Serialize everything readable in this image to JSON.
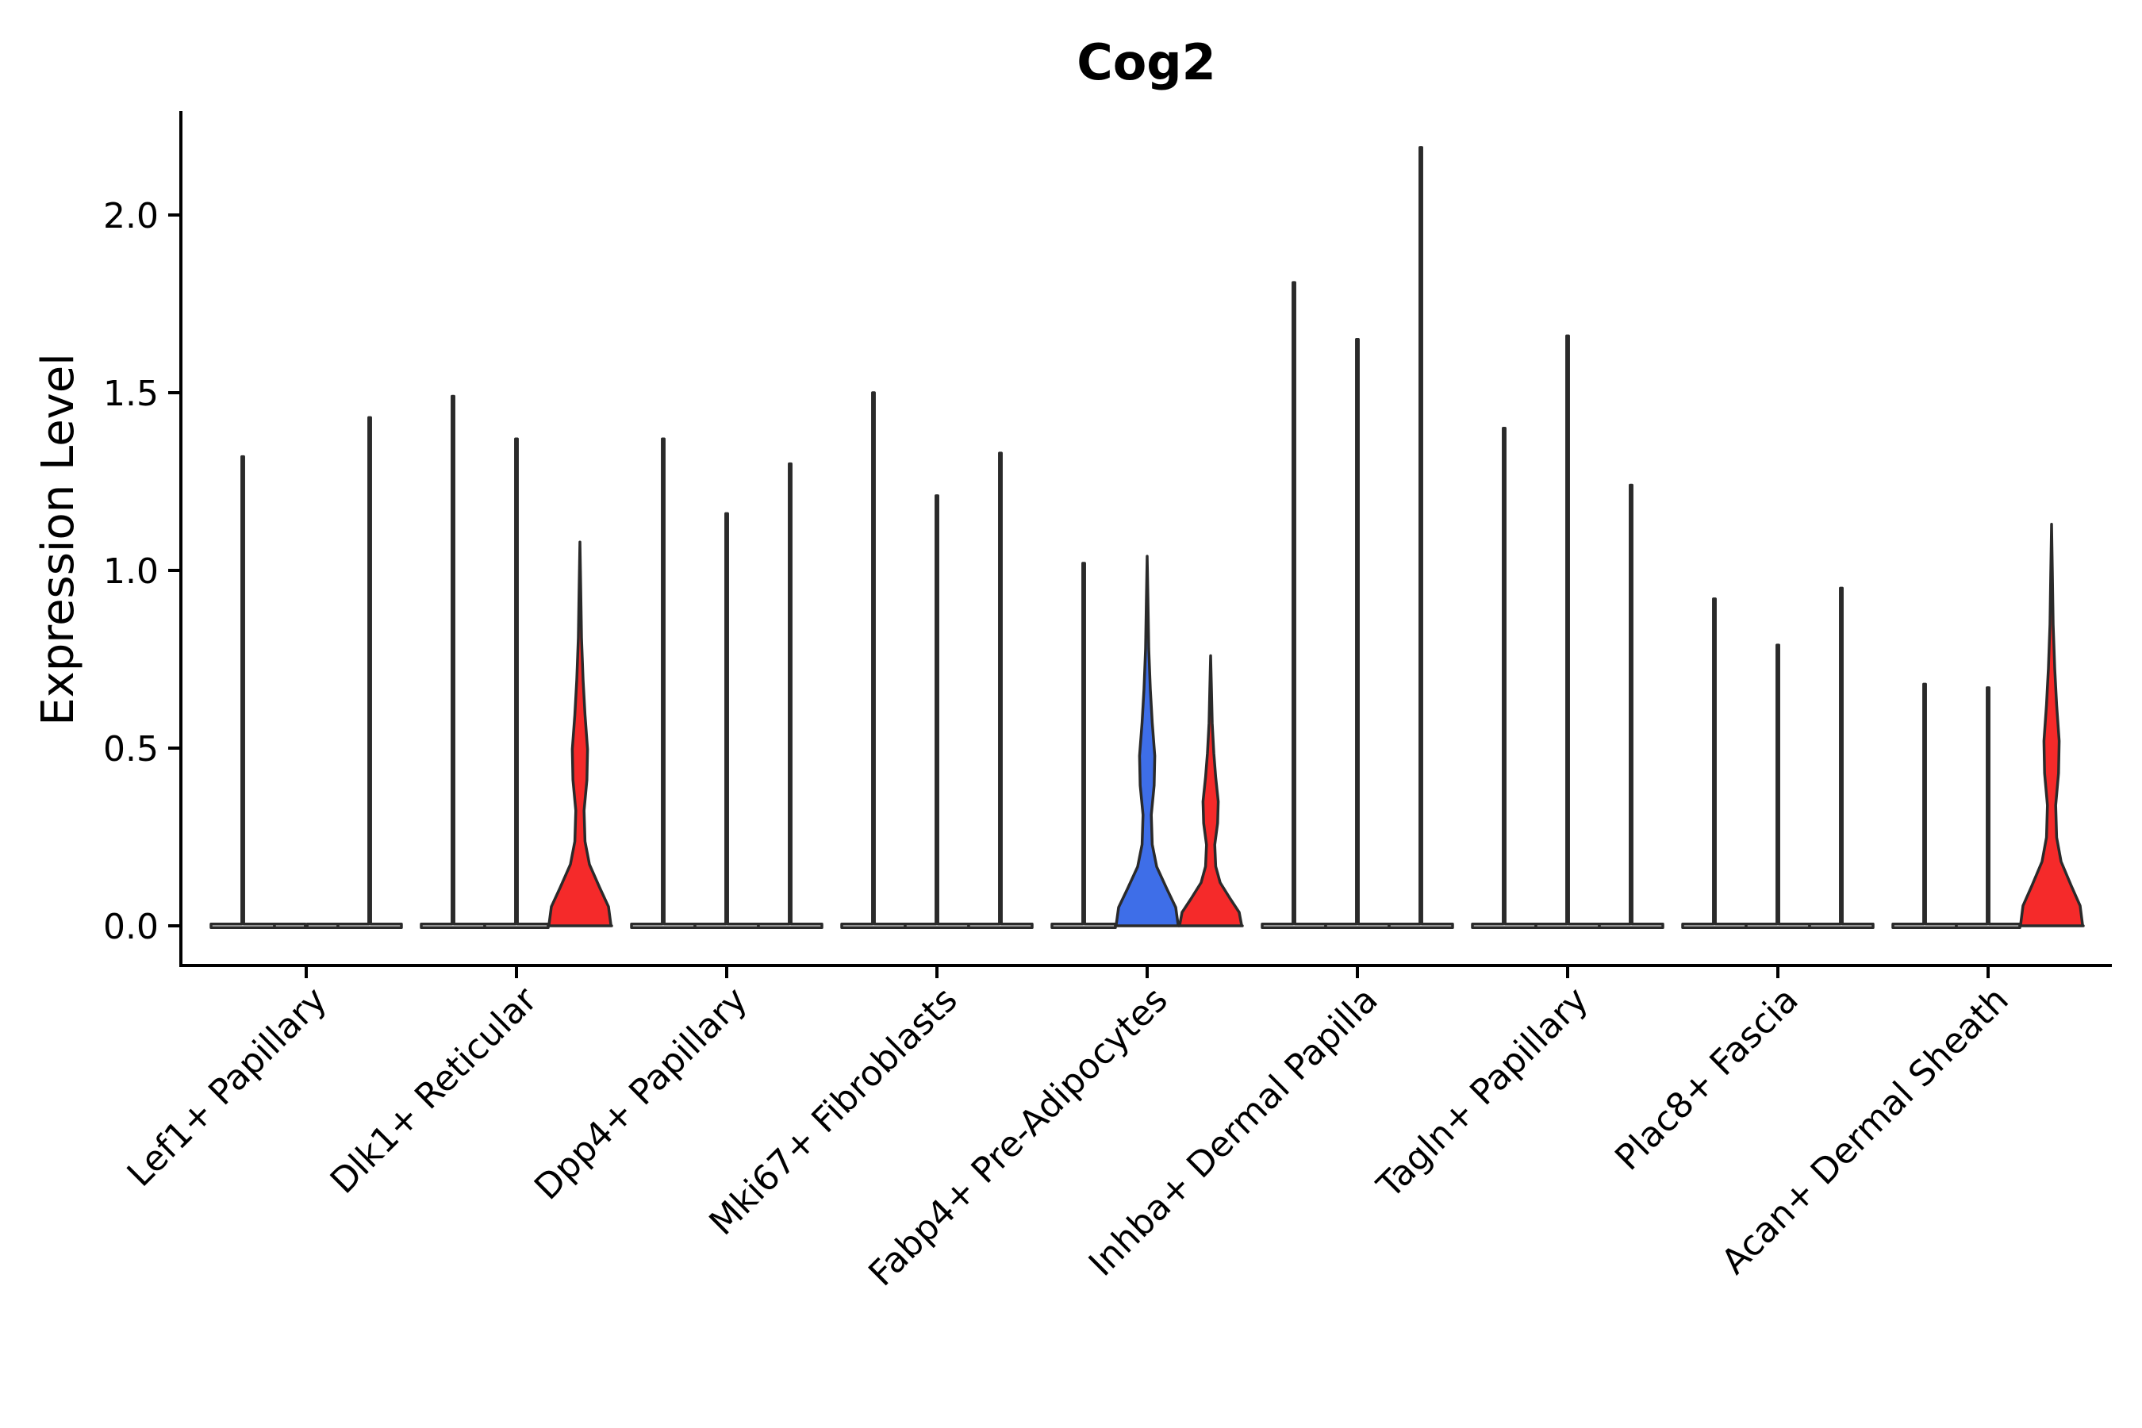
{
  "chart_data": {
    "type": "violin",
    "title": "Cog2",
    "xlabel": "",
    "ylabel": "Expression Level",
    "ylim": [
      -0.11,
      2.3
    ],
    "yticks": [
      0.0,
      0.5,
      1.0,
      1.5,
      2.0
    ],
    "ytick_labels": [
      "0.0",
      "0.5",
      "1.0",
      "1.5",
      "2.0"
    ],
    "categories": [
      "Lef1+ Papillary",
      "Dlk1+ Reticular",
      "Dpp4+ Papillary",
      "Mki67+ Fibroblasts",
      "Fabp4+ Pre-Adipocytes",
      "Inhba+ Dermal Papilla",
      "Tagln+ Papillary",
      "Plac8+ Fascia",
      "Acan+ Dermal Sheath"
    ],
    "series_colors": {
      "zero": "#ffffff",
      "blue": "#3e6ee8",
      "red": "#f52a2a"
    },
    "violins": [
      [
        {
          "max": 1.32,
          "fill": "zero",
          "shape": "flat"
        },
        {
          "max": 0.0,
          "fill": "zero",
          "shape": "flat"
        },
        {
          "max": 1.43,
          "fill": "zero",
          "shape": "flat"
        }
      ],
      [
        {
          "max": 1.49,
          "fill": "zero",
          "shape": "flat"
        },
        {
          "max": 1.37,
          "fill": "zero",
          "shape": "flat"
        },
        {
          "max": 1.08,
          "fill": "red",
          "shape": "wide"
        }
      ],
      [
        {
          "max": 1.37,
          "fill": "zero",
          "shape": "flat"
        },
        {
          "max": 1.16,
          "fill": "zero",
          "shape": "flat"
        },
        {
          "max": 1.3,
          "fill": "zero",
          "shape": "flat"
        }
      ],
      [
        {
          "max": 1.5,
          "fill": "zero",
          "shape": "flat"
        },
        {
          "max": 1.21,
          "fill": "zero",
          "shape": "flat"
        },
        {
          "max": 1.33,
          "fill": "zero",
          "shape": "flat"
        }
      ],
      [
        {
          "max": 1.02,
          "fill": "zero",
          "shape": "flat"
        },
        {
          "max": 1.04,
          "fill": "blue",
          "shape": "wide"
        },
        {
          "max": 0.76,
          "fill": "red",
          "shape": "wide"
        }
      ],
      [
        {
          "max": 1.81,
          "fill": "zero",
          "shape": "flat"
        },
        {
          "max": 1.65,
          "fill": "zero",
          "shape": "flat"
        },
        {
          "max": 2.19,
          "fill": "zero",
          "shape": "flat"
        }
      ],
      [
        {
          "max": 1.4,
          "fill": "zero",
          "shape": "flat"
        },
        {
          "max": 1.66,
          "fill": "zero",
          "shape": "flat"
        },
        {
          "max": 1.24,
          "fill": "zero",
          "shape": "flat"
        }
      ],
      [
        {
          "max": 0.92,
          "fill": "zero",
          "shape": "flat"
        },
        {
          "max": 0.79,
          "fill": "zero",
          "shape": "flat"
        },
        {
          "max": 0.95,
          "fill": "zero",
          "shape": "flat"
        }
      ],
      [
        {
          "max": 0.68,
          "fill": "zero",
          "shape": "flat"
        },
        {
          "max": 0.67,
          "fill": "zero",
          "shape": "flat"
        },
        {
          "max": 1.13,
          "fill": "red",
          "shape": "wide"
        }
      ]
    ]
  }
}
